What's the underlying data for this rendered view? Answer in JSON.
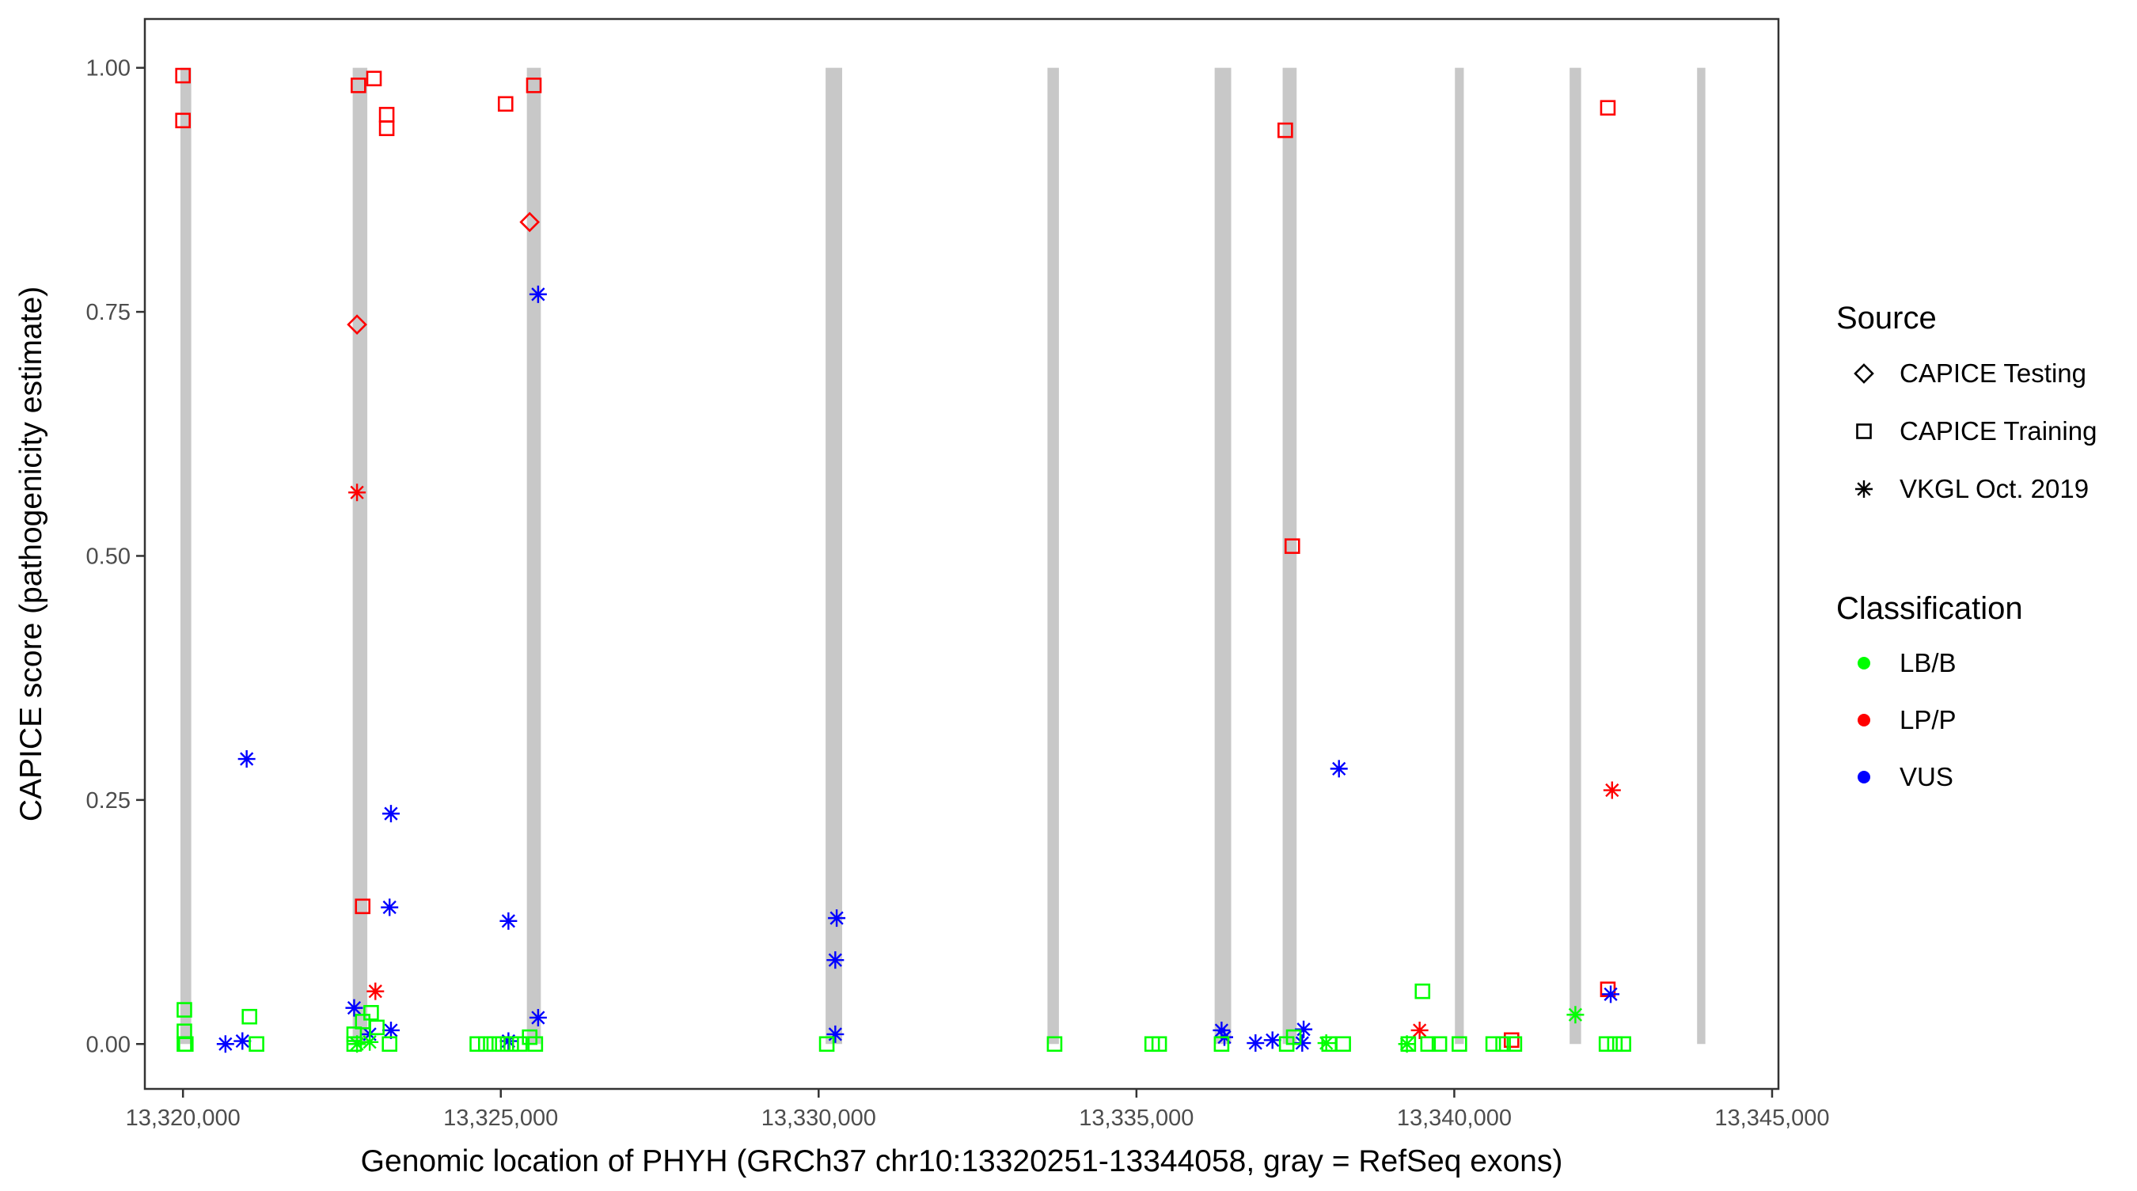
{
  "chart_data": {
    "type": "scatter",
    "xlabel": "Genomic location of PHYH (GRCh37 chr10:13320251-13344058, gray = RefSeq exons)",
    "ylabel": "CAPICE score (pathogenicity estimate)",
    "xlim": [
      13319400,
      13345100
    ],
    "ylim": [
      -0.046,
      1.05
    ],
    "xticks": [
      13320000,
      13325000,
      13330000,
      13335000,
      13340000,
      13345000
    ],
    "xtick_labels": [
      "13,320,000",
      "13,325,000",
      "13,330,000",
      "13,335,000",
      "13,340,000",
      "13,345,000"
    ],
    "yticks": [
      0,
      0.25,
      0.5,
      0.75,
      1.0
    ],
    "ytick_labels": [
      "0.00",
      "0.25",
      "0.50",
      "0.75",
      "1.00"
    ],
    "grid": false,
    "exons": [
      [
        13319960,
        13320130
      ],
      [
        13322670,
        13322900
      ],
      [
        13325410,
        13325630
      ],
      [
        13330110,
        13330370
      ],
      [
        13333600,
        13333780
      ],
      [
        13336230,
        13336490
      ],
      [
        13337300,
        13337520
      ],
      [
        13340010,
        13340150
      ],
      [
        13341815,
        13341995
      ],
      [
        13343820,
        13343950
      ]
    ],
    "legend": {
      "placement": "right",
      "source_title": "Source",
      "sources": [
        {
          "key": "test",
          "label": "CAPICE Testing",
          "shape": "diamond"
        },
        {
          "key": "train",
          "label": "CAPICE Training",
          "shape": "square"
        },
        {
          "key": "vkgl",
          "label": "VKGL Oct. 2019",
          "shape": "asterisk"
        }
      ],
      "class_title": "Classification",
      "classes": [
        {
          "key": "LB/B",
          "label": "LB/B",
          "color": "#00ff00"
        },
        {
          "key": "LP/P",
          "label": "LP/P",
          "color": "#ff0000"
        },
        {
          "key": "VUS",
          "label": "VUS",
          "color": "#0000ff"
        }
      ]
    },
    "points": [
      [
        13320000,
        0.946,
        "train",
        "LP/P"
      ],
      [
        13320000,
        0.992,
        "train",
        "LP/P"
      ],
      [
        13322760,
        0.982,
        "train",
        "LP/P"
      ],
      [
        13323005,
        0.989,
        "train",
        "LP/P"
      ],
      [
        13323205,
        0.952,
        "train",
        "LP/P"
      ],
      [
        13323205,
        0.938,
        "train",
        "LP/P"
      ],
      [
        13325075,
        0.963,
        "train",
        "LP/P"
      ],
      [
        13325520,
        0.982,
        "train",
        "LP/P"
      ],
      [
        13322827,
        0.141,
        "train",
        "LP/P"
      ],
      [
        13337341,
        0.936,
        "train",
        "LP/P"
      ],
      [
        13337452,
        0.51,
        "train",
        "LP/P"
      ],
      [
        13342416,
        0.959,
        "train",
        "LP/P"
      ],
      [
        13342416,
        0.056,
        "train",
        "LP/P"
      ],
      [
        13340901,
        0.004,
        "train",
        "LP/P"
      ],
      [
        13322738,
        0.737,
        "test",
        "LP/P"
      ],
      [
        13325454,
        0.842,
        "test",
        "LP/P"
      ],
      [
        13322738,
        0.565,
        "vkgl",
        "LP/P"
      ],
      [
        13323027,
        0.054,
        "vkgl",
        "LP/P"
      ],
      [
        13339455,
        0.014,
        "vkgl",
        "LP/P"
      ],
      [
        13342483,
        0.26,
        "vkgl",
        "LP/P"
      ],
      [
        13321002,
        0.292,
        "vkgl",
        "VUS"
      ],
      [
        13323272,
        0.236,
        "vkgl",
        "VUS"
      ],
      [
        13323250,
        0.14,
        "vkgl",
        "VUS"
      ],
      [
        13322693,
        0.037,
        "vkgl",
        "VUS"
      ],
      [
        13323272,
        0.014,
        "vkgl",
        "VUS"
      ],
      [
        13322938,
        0.01,
        "vkgl",
        "VUS"
      ],
      [
        13320668,
        0.0,
        "vkgl",
        "VUS"
      ],
      [
        13320935,
        0.003,
        "vkgl",
        "VUS"
      ],
      [
        13325587,
        0.768,
        "vkgl",
        "VUS"
      ],
      [
        13325120,
        0.126,
        "vkgl",
        "VUS"
      ],
      [
        13325587,
        0.027,
        "vkgl",
        "VUS"
      ],
      [
        13325120,
        0.003,
        "vkgl",
        "VUS"
      ],
      [
        13330284,
        0.129,
        "vkgl",
        "VUS"
      ],
      [
        13330262,
        0.086,
        "vkgl",
        "VUS"
      ],
      [
        13330262,
        0.01,
        "vkgl",
        "VUS"
      ],
      [
        13336339,
        0.014,
        "vkgl",
        "VUS"
      ],
      [
        13336384,
        0.007,
        "vkgl",
        "VUS"
      ],
      [
        13338186,
        0.282,
        "vkgl",
        "VUS"
      ],
      [
        13336873,
        0.001,
        "vkgl",
        "VUS"
      ],
      [
        13337140,
        0.004,
        "vkgl",
        "VUS"
      ],
      [
        13337630,
        0.015,
        "vkgl",
        "VUS"
      ],
      [
        13337608,
        0.001,
        "vkgl",
        "VUS"
      ],
      [
        13342461,
        0.051,
        "vkgl",
        "VUS"
      ],
      [
        13322738,
        0.0,
        "vkgl",
        "LB/B"
      ],
      [
        13322938,
        0.002,
        "vkgl",
        "LB/B"
      ],
      [
        13341905,
        0.03,
        "vkgl",
        "LB/B"
      ],
      [
        13339255,
        0.0,
        "vkgl",
        "LB/B"
      ],
      [
        13337986,
        0.001,
        "vkgl",
        "LB/B"
      ],
      [
        13320022,
        0.035,
        "train",
        "LB/B"
      ],
      [
        13320022,
        0.013,
        "train",
        "LB/B"
      ],
      [
        13320022,
        0.0,
        "train",
        "LB/B"
      ],
      [
        13320045,
        0.0,
        "train",
        "LB/B"
      ],
      [
        13321046,
        0.028,
        "train",
        "LB/B"
      ],
      [
        13321157,
        0.0,
        "train",
        "LB/B"
      ],
      [
        13322693,
        0.01,
        "train",
        "LB/B"
      ],
      [
        13322693,
        0.0,
        "train",
        "LB/B"
      ],
      [
        13322827,
        0.023,
        "train",
        "LB/B"
      ],
      [
        13322960,
        0.032,
        "train",
        "LB/B"
      ],
      [
        13323050,
        0.017,
        "train",
        "LB/B"
      ],
      [
        13323250,
        0.0,
        "train",
        "LB/B"
      ],
      [
        13324630,
        0.0,
        "train",
        "LB/B"
      ],
      [
        13324764,
        0.0,
        "train",
        "LB/B"
      ],
      [
        13324897,
        0.0,
        "train",
        "LB/B"
      ],
      [
        13325031,
        0.0,
        "train",
        "LB/B"
      ],
      [
        13325164,
        0.0,
        "train",
        "LB/B"
      ],
      [
        13325298,
        0.0,
        "train",
        "LB/B"
      ],
      [
        13325454,
        0.007,
        "train",
        "LB/B"
      ],
      [
        13325543,
        0.0,
        "train",
        "LB/B"
      ],
      [
        13330128,
        0.0,
        "train",
        "LB/B"
      ],
      [
        13333712,
        0.0,
        "train",
        "LB/B"
      ],
      [
        13335247,
        0.0,
        "train",
        "LB/B"
      ],
      [
        13335358,
        0.0,
        "train",
        "LB/B"
      ],
      [
        13336339,
        0.0,
        "train",
        "LB/B"
      ],
      [
        13337363,
        0.0,
        "train",
        "LB/B"
      ],
      [
        13337474,
        0.007,
        "train",
        "LB/B"
      ],
      [
        13338031,
        0.0,
        "train",
        "LB/B"
      ],
      [
        13338253,
        0.0,
        "train",
        "LB/B"
      ],
      [
        13339277,
        0.0,
        "train",
        "LB/B"
      ],
      [
        13339500,
        0.054,
        "train",
        "LB/B"
      ],
      [
        13339588,
        0.0,
        "train",
        "LB/B"
      ],
      [
        13339766,
        0.0,
        "train",
        "LB/B"
      ],
      [
        13340080,
        0.0,
        "train",
        "LB/B"
      ],
      [
        13340612,
        0.0,
        "train",
        "LB/B"
      ],
      [
        13340768,
        0.0,
        "train",
        "LB/B"
      ],
      [
        13340946,
        0.0,
        "train",
        "LB/B"
      ],
      [
        13342394,
        0.0,
        "train",
        "LB/B"
      ],
      [
        13342527,
        0.0,
        "train",
        "LB/B"
      ],
      [
        13342661,
        0.0,
        "train",
        "LB/B"
      ]
    ]
  }
}
